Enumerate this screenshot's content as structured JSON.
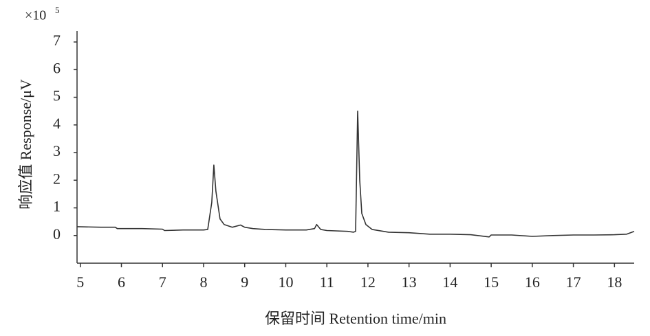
{
  "chart_data": {
    "type": "line",
    "y_multiplier": "×10",
    "y_multiplier_exponent": "5",
    "x_label": "保留时间 Retention time/min",
    "y_label": "响应值 Response/μV",
    "x": [
      4.92,
      5.5,
      5.85,
      5.9,
      6.5,
      7.0,
      7.05,
      7.5,
      8.0,
      8.1,
      8.2,
      8.25,
      8.3,
      8.4,
      8.5,
      8.7,
      8.9,
      9.0,
      9.2,
      9.5,
      10.0,
      10.5,
      10.7,
      10.75,
      10.85,
      11.0,
      11.5,
      11.65,
      11.7,
      11.75,
      11.8,
      11.85,
      11.95,
      12.1,
      12.5,
      13.0,
      13.5,
      14.0,
      14.5,
      14.95,
      15.0,
      15.5,
      16.0,
      16.5,
      17.0,
      17.5,
      18.0,
      18.3,
      18.48
    ],
    "values": [
      0.32,
      0.3,
      0.3,
      0.25,
      0.25,
      0.23,
      0.18,
      0.2,
      0.2,
      0.22,
      1.2,
      2.55,
      1.6,
      0.6,
      0.4,
      0.3,
      0.38,
      0.3,
      0.25,
      0.22,
      0.2,
      0.2,
      0.25,
      0.4,
      0.22,
      0.18,
      0.15,
      0.12,
      0.15,
      4.5,
      2.0,
      0.8,
      0.4,
      0.22,
      0.12,
      0.1,
      0.05,
      0.05,
      0.03,
      -0.05,
      0.02,
      0.02,
      -0.03,
      0.0,
      0.02,
      0.02,
      0.03,
      0.05,
      0.15
    ],
    "color": "#333333",
    "xlim": [
      4.92,
      18.48
    ],
    "ylim": [
      -1,
      7.4
    ],
    "xticks": [
      5,
      6,
      7,
      8,
      9,
      10,
      11,
      12,
      13,
      14,
      15,
      16,
      17,
      18
    ],
    "yticks": [
      0,
      1,
      2,
      3,
      4,
      5,
      6,
      7
    ]
  }
}
